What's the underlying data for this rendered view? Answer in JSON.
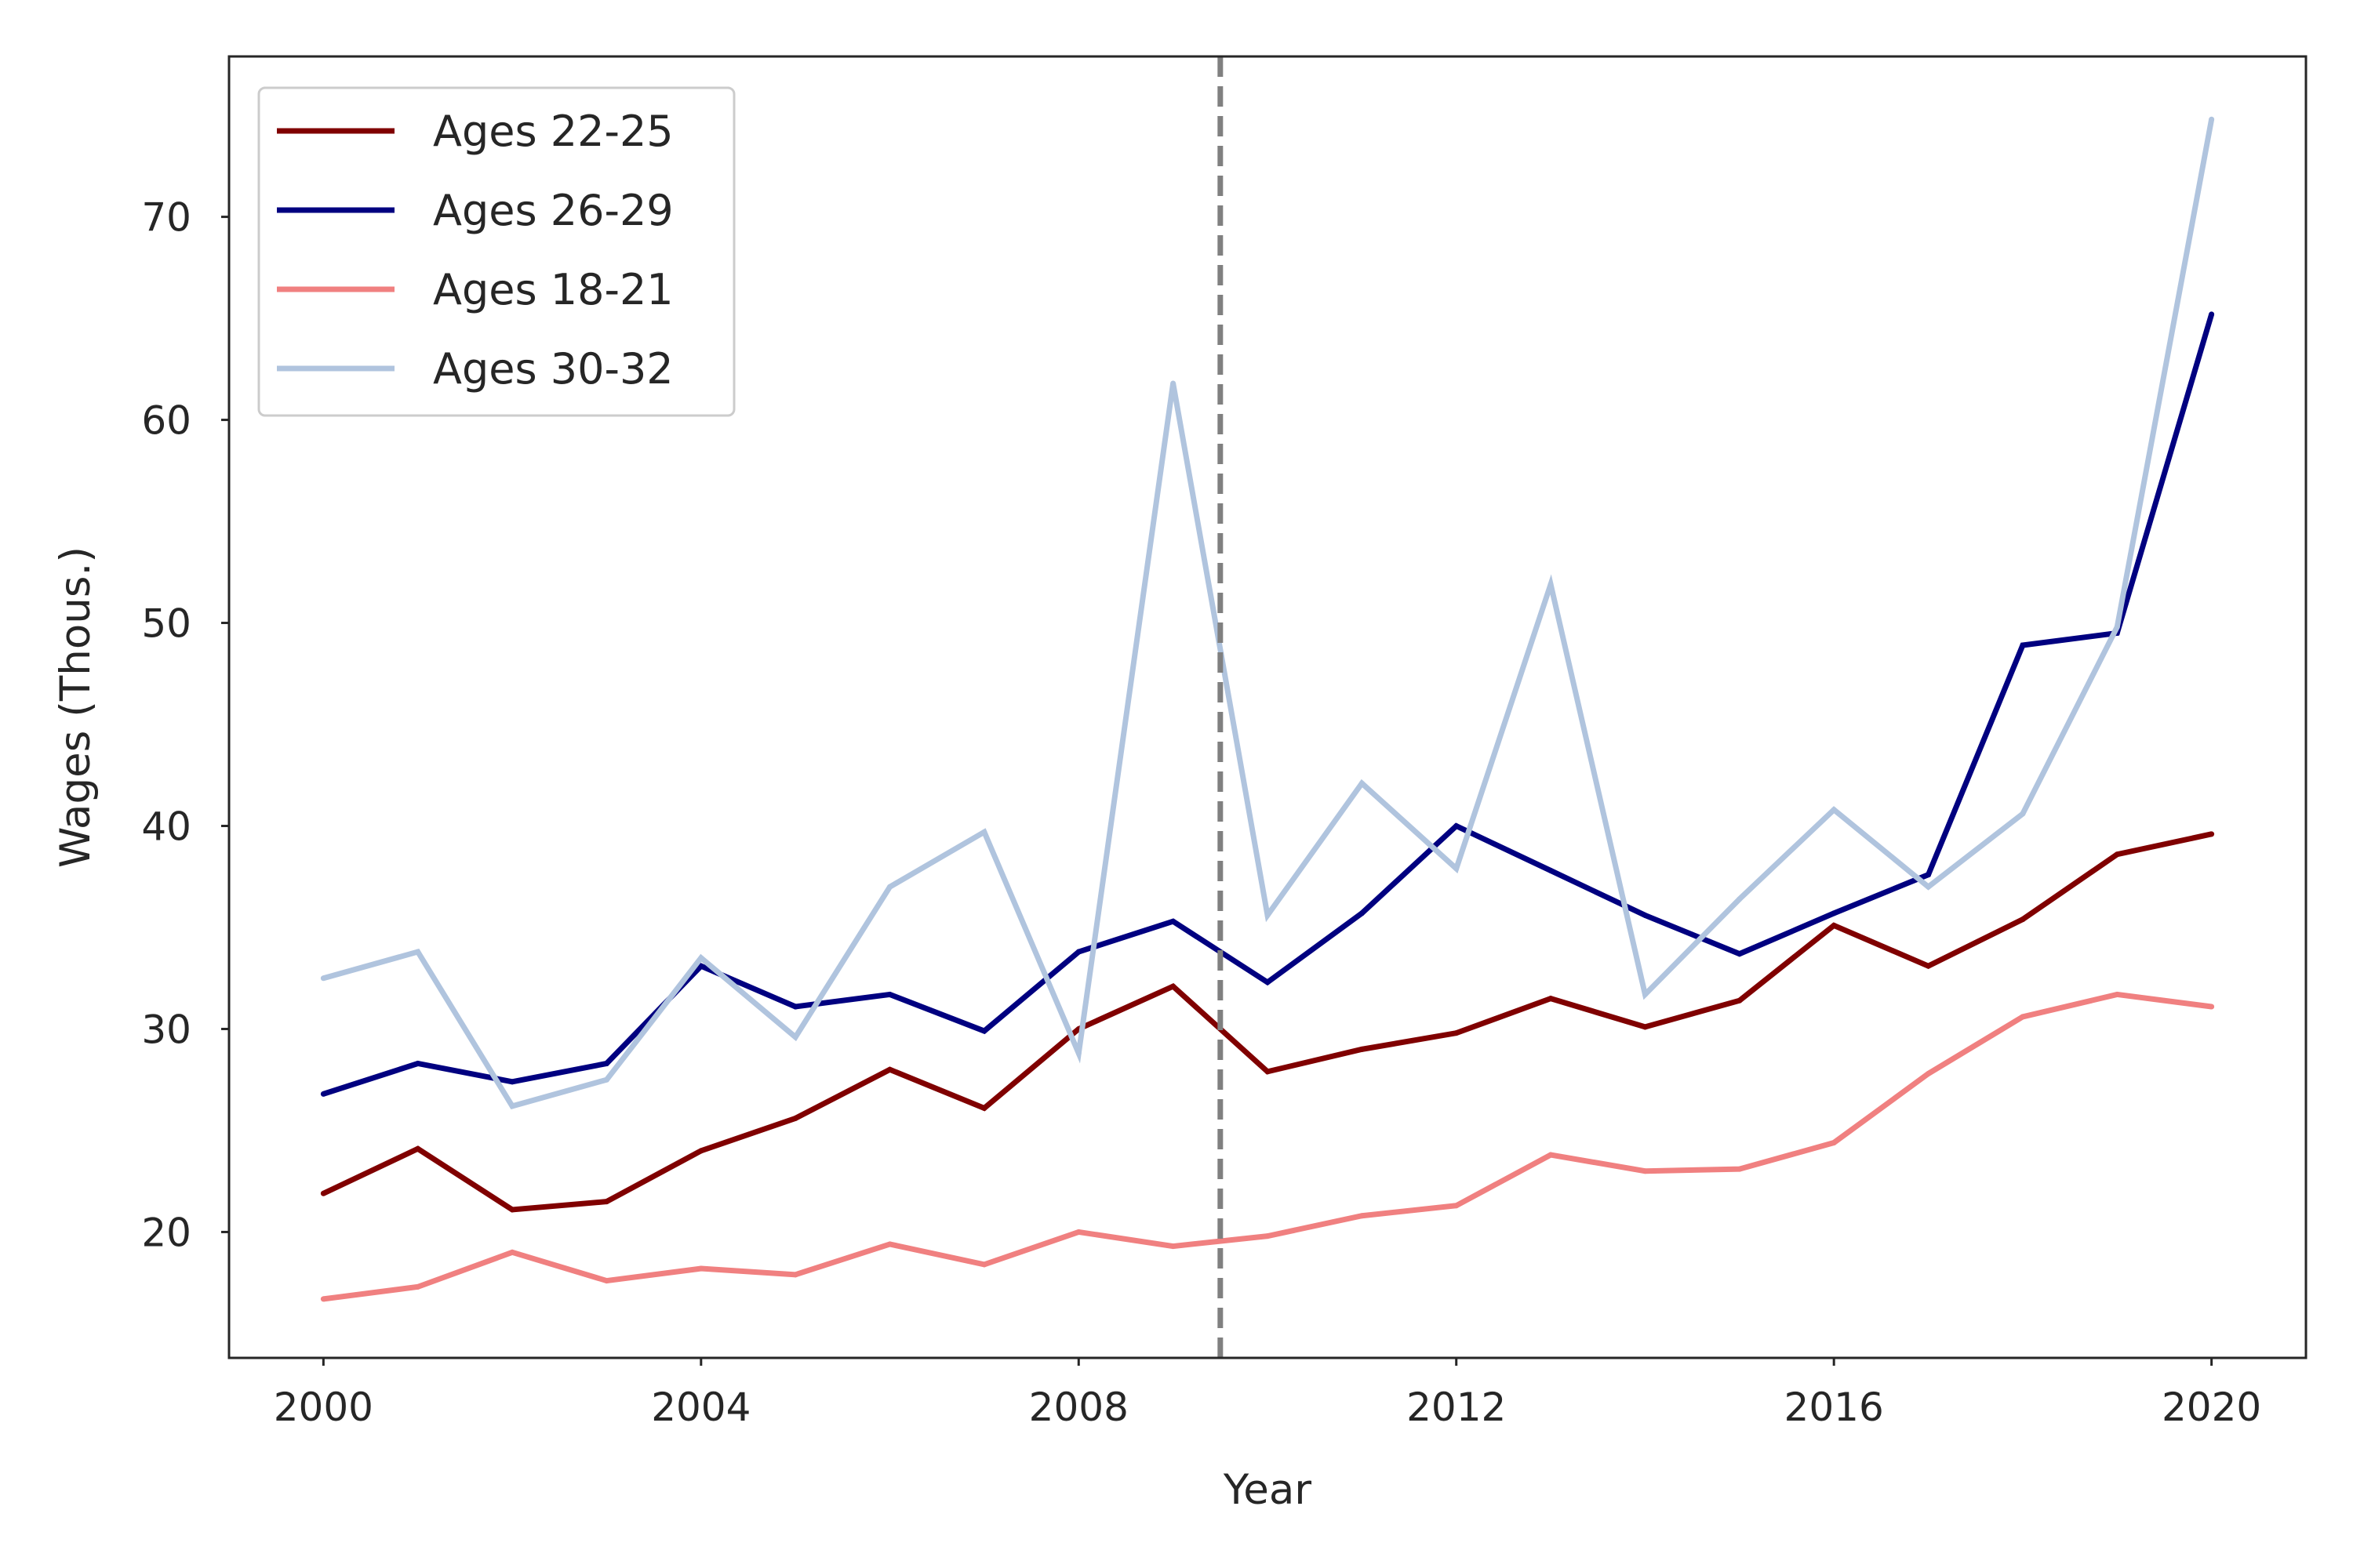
{
  "chart_data": {
    "type": "line",
    "title": "",
    "xlabel": "Year",
    "ylabel": "Wages (Thous.)",
    "xlim": [
      1999,
      2021
    ],
    "ylim": [
      13.8,
      77.9
    ],
    "xticks": [
      2000,
      2004,
      2008,
      2012,
      2016,
      2020
    ],
    "yticks": [
      20,
      30,
      40,
      50,
      60,
      70
    ],
    "grid": false,
    "legend_position": "upper left",
    "vline": {
      "x": 2009.5,
      "style": "dashed",
      "color": "#808080"
    },
    "x": [
      2000,
      2001,
      2002,
      2003,
      2004,
      2005,
      2006,
      2007,
      2008,
      2009,
      2010,
      2011,
      2012,
      2013,
      2014,
      2015,
      2016,
      2017,
      2018,
      2019,
      2020
    ],
    "series": [
      {
        "name": "Ages 22-25",
        "color": "#800000",
        "values": [
          21.9,
          24.1,
          21.1,
          21.5,
          24.0,
          25.6,
          28.0,
          26.1,
          30.0,
          32.1,
          27.9,
          29.0,
          29.8,
          31.5,
          30.1,
          31.4,
          35.1,
          33.1,
          35.4,
          38.6,
          39.6
        ]
      },
      {
        "name": "Ages 26-29",
        "color": "#000080",
        "values": [
          26.8,
          28.3,
          27.4,
          28.3,
          33.1,
          31.1,
          31.7,
          29.9,
          33.8,
          35.3,
          32.3,
          35.7,
          40.0,
          37.8,
          35.6,
          33.7,
          35.7,
          37.6,
          48.9,
          49.5,
          65.2
        ]
      },
      {
        "name": "Ages 18-21",
        "color": "#f08080",
        "values": [
          16.7,
          17.3,
          19.0,
          17.6,
          18.2,
          17.9,
          19.4,
          18.4,
          20.0,
          19.3,
          19.8,
          20.8,
          21.3,
          23.8,
          23.0,
          23.1,
          24.4,
          27.8,
          30.6,
          31.7,
          31.1
        ]
      },
      {
        "name": "Ages 30-32",
        "color": "#b0c4de",
        "values": [
          32.5,
          33.8,
          26.2,
          27.5,
          33.5,
          29.6,
          37.0,
          39.7,
          28.8,
          61.8,
          35.6,
          42.1,
          37.9,
          51.9,
          31.7,
          36.4,
          40.8,
          37.0,
          40.6,
          49.8,
          74.8
        ]
      }
    ]
  }
}
